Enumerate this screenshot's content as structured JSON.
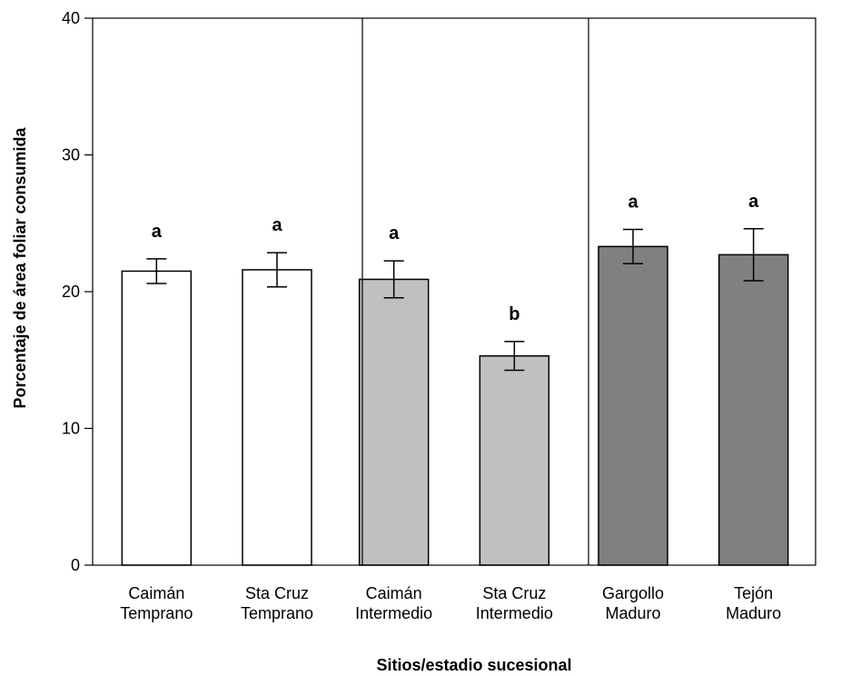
{
  "chart_data": {
    "type": "bar",
    "xlabel": "Sitios/estadio sucesional",
    "ylabel": "Porcentaje de área foliar consumida",
    "ylim": [
      0,
      40
    ],
    "yticks": [
      0,
      10,
      20,
      30,
      40
    ],
    "grid": false,
    "categories": [
      [
        "Caimán",
        "Temprano"
      ],
      [
        "Sta Cruz",
        "Temprano"
      ],
      [
        "Caimán",
        "Intermedio"
      ],
      [
        "Sta Cruz",
        "Intermedio"
      ],
      [
        "Gargollo",
        "Maduro"
      ],
      [
        "Tejón",
        "Maduro"
      ]
    ],
    "values": [
      21.5,
      21.6,
      20.9,
      15.3,
      23.3,
      22.7
    ],
    "errors": [
      0.9,
      1.25,
      1.35,
      1.05,
      1.25,
      1.9
    ],
    "significance": [
      "a",
      "a",
      "a",
      "b",
      "a",
      "a"
    ],
    "bar_colors": [
      "#ffffff",
      "#ffffff",
      "#c0c0c0",
      "#c0c0c0",
      "#808080",
      "#808080"
    ],
    "group_separators_after": [
      1,
      3
    ]
  }
}
